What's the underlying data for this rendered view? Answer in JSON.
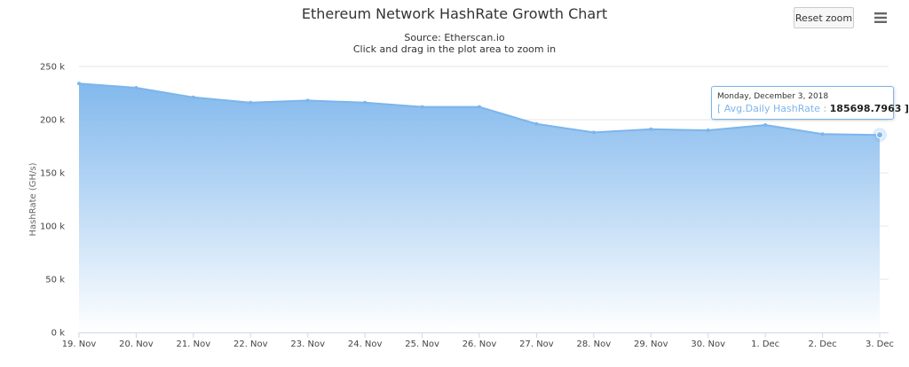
{
  "header": {
    "title": "Ethereum Network HashRate Growth Chart",
    "source": "Source: Etherscan.io",
    "hint": "Click and drag in the plot area to zoom in"
  },
  "toolbar": {
    "reset_zoom_label": "Reset zoom",
    "menu_icon": "hamburger-menu-icon"
  },
  "colors": {
    "series": "#7cb5ec",
    "area_top": "#7cb5ec",
    "area_bottom": "#ffffff",
    "grid": "#e6e6e6"
  },
  "tooltip": {
    "date": "Monday, December 3, 2018",
    "open_bracket": "[",
    "series_label": "Avg.Daily HashRate",
    "separator": ":",
    "value": "185698.7963",
    "close_bracket": "]"
  },
  "chart_data": {
    "type": "area",
    "title": "Ethereum Network HashRate Growth Chart",
    "subtitle": "Source: Etherscan.io",
    "xlabel": "",
    "ylabel": "HashRate (GH/s)",
    "categories": [
      "19. Nov",
      "20. Nov",
      "21. Nov",
      "22. Nov",
      "23. Nov",
      "24. Nov",
      "25. Nov",
      "26. Nov",
      "27. Nov",
      "28. Nov",
      "29. Nov",
      "30. Nov",
      "1. Dec",
      "2. Dec",
      "3. Dec"
    ],
    "series": [
      {
        "name": "Avg.Daily HashRate",
        "values": [
          234000,
          230000,
          221000,
          216000,
          218000,
          216000,
          212000,
          212000,
          196000,
          188000,
          191000,
          190000,
          195000,
          186500,
          185698.7963
        ]
      }
    ],
    "ylim": [
      0,
      250000
    ],
    "yticks": [
      0,
      50000,
      100000,
      150000,
      200000,
      250000
    ],
    "ytick_labels": [
      "0 k",
      "50 k",
      "100 k",
      "150 k",
      "200 k",
      "250 k"
    ],
    "grid": true,
    "legend": "none",
    "highlighted_index": 14
  }
}
